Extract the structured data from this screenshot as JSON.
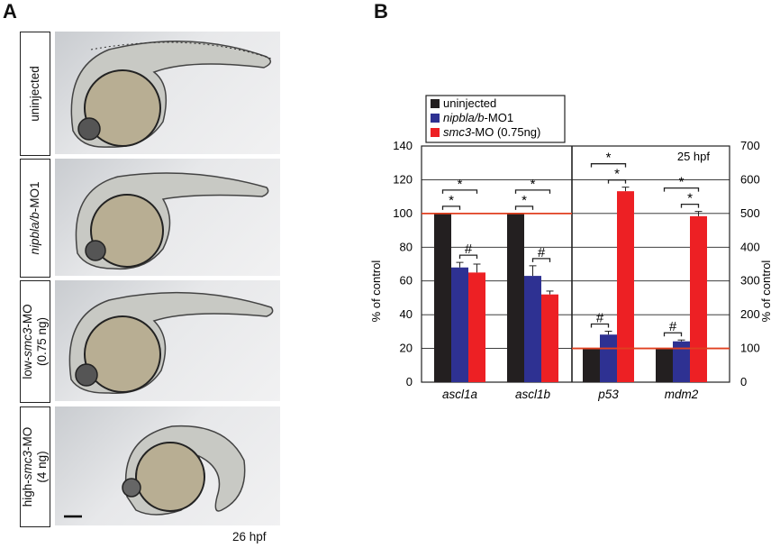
{
  "panels": {
    "a": {
      "letter": "A",
      "rows": [
        {
          "label_pre": "",
          "label_it": "",
          "label_post": "uninjected",
          "label_line2": ""
        },
        {
          "label_pre": "",
          "label_it": "nipbla/b",
          "label_post": "-MO1",
          "label_line2": ""
        },
        {
          "label_pre": "low-",
          "label_it": "smc3",
          "label_post": "-MO",
          "label_line2": "(0.75 ng)"
        },
        {
          "label_pre": "high-",
          "label_it": "smc3",
          "label_post": "-MO",
          "label_line2": "(4 ng)"
        }
      ],
      "stage": "26 hpf"
    },
    "b": {
      "letter": "B"
    }
  },
  "chart_data": {
    "type": "bar",
    "categories": [
      "ascl1a",
      "ascl1b",
      "p53",
      "mdm2"
    ],
    "series": [
      {
        "name": "uninjected",
        "name_it": "",
        "name_post": "uninjected",
        "color": "#231f20",
        "values": [
          100,
          100,
          100,
          100
        ],
        "errors": [
          0,
          0,
          0,
          0
        ]
      },
      {
        "name": "nipbla/b-MO1",
        "name_it": "nipbla/b",
        "name_post": "-MO1",
        "color": "#2e3192",
        "values": [
          68,
          63,
          141,
          121
        ],
        "errors": [
          3,
          6,
          10,
          4
        ]
      },
      {
        "name": "smc3-MO (0.75ng)",
        "name_it": "smc3",
        "name_post": "-MO (0.75ng)",
        "color": "#ed2024",
        "values": [
          65,
          52,
          566,
          492
        ],
        "errors": [
          5,
          2,
          12,
          14
        ]
      }
    ],
    "left_axis": {
      "label": "% of control",
      "range": [
        0,
        140
      ],
      "ticks": [
        "0",
        "20",
        "40",
        "60",
        "80",
        "100",
        "120",
        "140"
      ],
      "applies_to": [
        "ascl1a",
        "ascl1b"
      ]
    },
    "right_axis": {
      "label": "% of control",
      "range": [
        0,
        700
      ],
      "ticks": [
        "0",
        "100",
        "200",
        "300",
        "400",
        "500",
        "600",
        "700"
      ],
      "applies_to": [
        "p53",
        "mdm2"
      ]
    },
    "reference_line": {
      "left_value": 100,
      "right_value": 100,
      "color": "#e04020"
    },
    "annotation": "25 hpf",
    "significance": [
      {
        "category": "ascl1a",
        "from": 0,
        "to": 1,
        "mark": "*"
      },
      {
        "category": "ascl1a",
        "from": 0,
        "to": 2,
        "mark": "*"
      },
      {
        "category": "ascl1a",
        "from": 1,
        "to": 2,
        "mark": "#"
      },
      {
        "category": "ascl1b",
        "from": 0,
        "to": 1,
        "mark": "*"
      },
      {
        "category": "ascl1b",
        "from": 0,
        "to": 2,
        "mark": "*"
      },
      {
        "category": "ascl1b",
        "from": 1,
        "to": 2,
        "mark": "#"
      },
      {
        "category": "p53",
        "from": 0,
        "to": 1,
        "mark": "#"
      },
      {
        "category": "p53",
        "from": 1,
        "to": 2,
        "mark": "*"
      },
      {
        "category": "p53",
        "from": 0,
        "to": 2,
        "mark": "*"
      },
      {
        "category": "mdm2",
        "from": 0,
        "to": 1,
        "mark": "#"
      },
      {
        "category": "mdm2",
        "from": 1,
        "to": 2,
        "mark": "*"
      },
      {
        "category": "mdm2",
        "from": 0,
        "to": 2,
        "mark": "*"
      }
    ],
    "grid": true,
    "legend_position": "top-left"
  }
}
